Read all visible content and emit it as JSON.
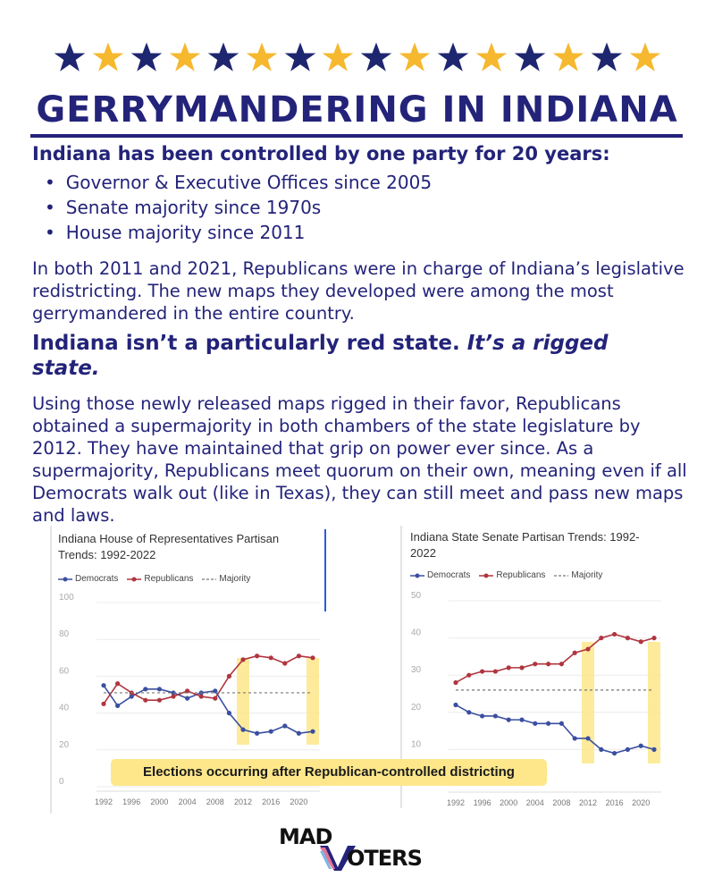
{
  "stars": {
    "count": 16,
    "colors": [
      "#1f2670",
      "#f5b82e"
    ]
  },
  "header": {
    "title": "GERRYMANDERING IN INDIANA"
  },
  "section1": {
    "heading": "Indiana has been controlled by one party for 20 years:",
    "bullets": [
      "Governor & Executive Offices since 2005",
      "Senate majority since 1970s",
      "House majority since 2011"
    ],
    "paragraph": "In both 2011 and 2021, Republicans were in charge of Indiana’s legislative redistricting. The new maps they developed were among the most gerrymandered in the entire country."
  },
  "section2": {
    "heading_plain": "Indiana isn’t a particularly red state.",
    "heading_italic": "It’s a rigged state.",
    "paragraph": "Using those newly released maps rigged in their favor, Republicans obtained a supermajority in both chambers of the state legislature by 2012. They have maintained that grip on power ever since. As a supermajority, Republicans meet quorum on their own, meaning even if all Democrats walk out (like in Texas), they can still meet and pass new maps and laws."
  },
  "banner": {
    "text": "Elections occurring after Republican-controlled districting"
  },
  "logo": {
    "line1": "MAD",
    "line2": "OTERS",
    "v_colors": [
      "#23237a",
      "#e8739a",
      "#7ab8e0"
    ]
  },
  "colors": {
    "democrats": "#3a4fa0",
    "republicans": "#b0353f",
    "majority": "#777777",
    "highlight": "#fde78a"
  },
  "chart_data": [
    {
      "type": "line",
      "title": "Indiana House of Representatives Partisan Trends: 1992-2022",
      "legend": [
        "Democrats",
        "Republicans",
        "Majority"
      ],
      "legend_placement": "top-left",
      "x": [
        1992,
        1994,
        1996,
        1998,
        2000,
        2002,
        2004,
        2006,
        2008,
        2010,
        2012,
        2014,
        2016,
        2018,
        2020,
        2022
      ],
      "x_tick_labels": [
        "1992",
        "1996",
        "2000",
        "2004",
        "2008",
        "2012",
        "2016",
        "2020"
      ],
      "y_tick_labels": [
        "0",
        "20",
        "40",
        "60",
        "80",
        "100"
      ],
      "ylim": [
        0,
        100
      ],
      "series": [
        {
          "name": "Democrats",
          "values": [
            55,
            44,
            49,
            53,
            53,
            51,
            48,
            51,
            52,
            40,
            31,
            29,
            30,
            33,
            29,
            30
          ]
        },
        {
          "name": "Republicans",
          "values": [
            45,
            56,
            51,
            47,
            47,
            49,
            52,
            49,
            48,
            60,
            69,
            71,
            70,
            67,
            71,
            70
          ]
        },
        {
          "name": "Majority",
          "values": [
            51,
            51,
            51,
            51,
            51,
            51,
            51,
            51,
            51,
            51,
            51,
            51,
            51,
            51,
            51,
            51
          ]
        }
      ],
      "highlight_years": [
        [
          2012,
          2012
        ],
        [
          2022,
          2022
        ]
      ]
    },
    {
      "type": "line",
      "title": "Indiana State Senate Partisan Trends: 1992-2022",
      "legend": [
        "Democrats",
        "Republicans",
        "Majority"
      ],
      "legend_placement": "top-left",
      "x": [
        1992,
        1994,
        1996,
        1998,
        2000,
        2002,
        2004,
        2006,
        2008,
        2010,
        2012,
        2014,
        2016,
        2018,
        2020,
        2022
      ],
      "x_tick_labels": [
        "1992",
        "1996",
        "2000",
        "2004",
        "2008",
        "2012",
        "2016",
        "2020"
      ],
      "y_tick_labels": [
        "10",
        "20",
        "30",
        "40",
        "50"
      ],
      "ylim": [
        0,
        50
      ],
      "series": [
        {
          "name": "Democrats",
          "values": [
            22,
            20,
            19,
            19,
            18,
            18,
            17,
            17,
            17,
            13,
            13,
            10,
            9,
            10,
            11,
            10
          ]
        },
        {
          "name": "Republicans",
          "values": [
            28,
            30,
            31,
            31,
            32,
            32,
            33,
            33,
            33,
            36,
            37,
            40,
            41,
            40,
            39,
            40
          ]
        },
        {
          "name": "Majority",
          "values": [
            26,
            26,
            26,
            26,
            26,
            26,
            26,
            26,
            26,
            26,
            26,
            26,
            26,
            26,
            26,
            26
          ]
        }
      ],
      "highlight_years": [
        [
          2012,
          2012
        ],
        [
          2022,
          2022
        ]
      ]
    }
  ]
}
